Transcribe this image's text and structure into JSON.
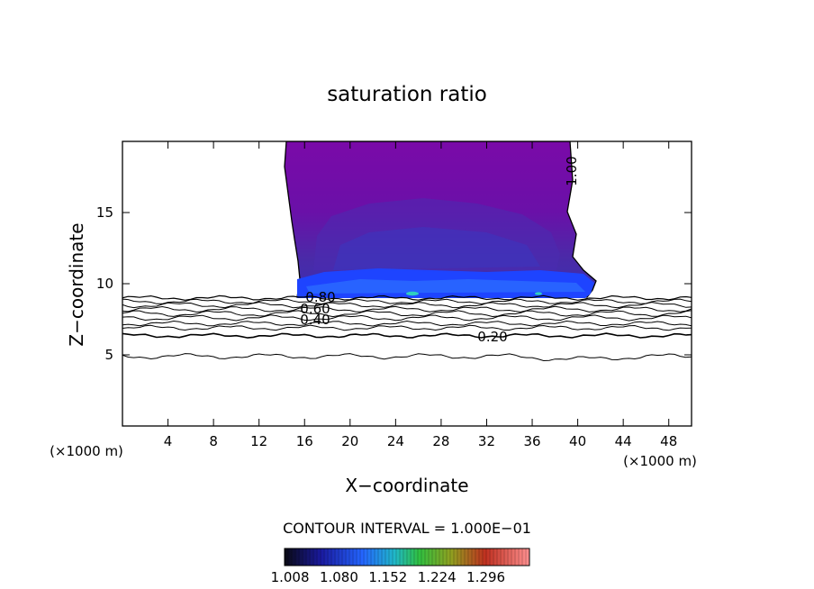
{
  "chart_data": {
    "type": "contour",
    "title": "saturation ratio",
    "xlabel": "X−coordinate",
    "ylabel": "Z−coordinate",
    "x_unit_label": "(×1000 m)",
    "xlim": [
      0,
      50
    ],
    "ylim": [
      0,
      20
    ],
    "x_ticks": [
      "4",
      "8",
      "12",
      "16",
      "20",
      "24",
      "28",
      "32",
      "36",
      "40",
      "44",
      "48"
    ],
    "y_ticks": [
      "5",
      "10",
      "15"
    ],
    "contour_interval_label": "CONTOUR INTERVAL = 1.000E−01",
    "contour_labels": [
      "1.00",
      "0.80",
      "0.60",
      "0.40",
      "0.20"
    ],
    "filled_region": {
      "description_levels_above": 1.0,
      "x_range_approx": [
        15,
        41
      ],
      "z_range_approx": [
        9,
        20
      ]
    },
    "colorbar": {
      "tick_labels": [
        "1.008",
        "1.080",
        "1.152",
        "1.224",
        "1.296"
      ],
      "colors": [
        "#0a0a12",
        "#1a1aa0",
        "#2060ff",
        "#20c0c0",
        "#30c030",
        "#a0a020",
        "#d04020",
        "#ff8080"
      ]
    },
    "colors": {
      "cloud_top": "#7a0aa8",
      "cloud_mid": "#5a22a8",
      "cloud_base": "#1a40ff",
      "line": "#000000"
    }
  }
}
